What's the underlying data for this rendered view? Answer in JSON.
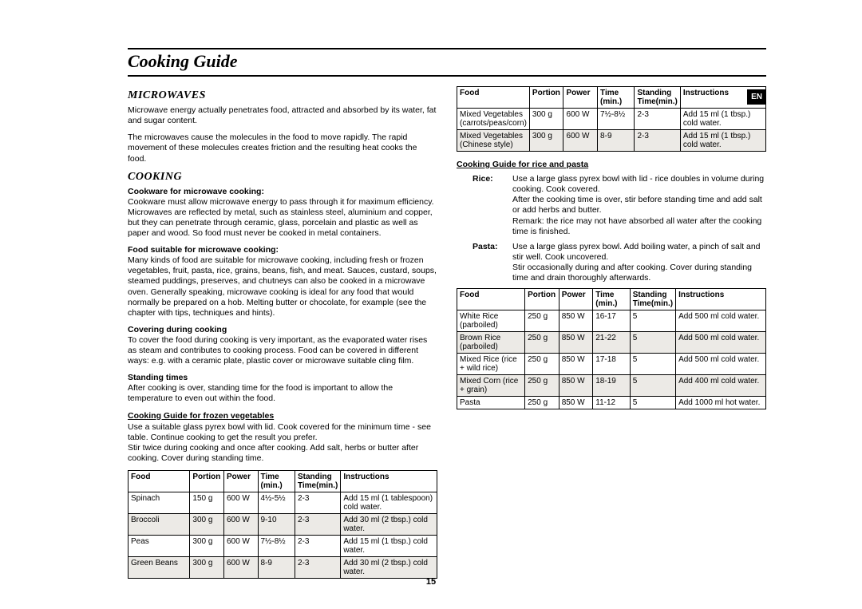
{
  "lang_tag": "EN",
  "page_number": "15",
  "title": "Cooking Guide",
  "microwaves": {
    "heading": "MICROWAVES",
    "p1": "Microwave energy actually penetrates food, attracted and absorbed by its water, fat and sugar content.",
    "p2": "The microwaves cause the molecules in the food to move rapidly. The rapid movement of these molecules creates friction and the resulting heat cooks the food."
  },
  "cooking": {
    "heading": "COOKING",
    "sub1_h": "Cookware for microwave cooking:",
    "sub1_p": "Cookware must allow microwave energy to pass through it for maximum efficiency. Microwaves are reflected by metal, such as stainless steel, aluminium and copper, but they can penetrate through ceramic, glass, porcelain and plastic as well as paper and wood. So food must never be cooked in metal containers.",
    "sub2_h": "Food suitable for microwave cooking:",
    "sub2_p": "Many kinds of food are suitable for microwave cooking, including fresh or frozen vegetables, fruit, pasta, rice, grains, beans, fish, and meat. Sauces, custard, soups, steamed puddings, preserves, and chutneys can also be cooked in a microwave oven. Generally speaking, microwave cooking is ideal for any food that would normally be prepared on a hob. Melting butter or chocolate, for example (see the chapter with tips, techniques and hints).",
    "sub3_h": "Covering during cooking",
    "sub3_p": "To cover the food during cooking is very important, as the evaporated water rises as steam and contributes to cooking process. Food can be covered in different ways: e.g. with a ceramic plate, plastic cover or microwave suitable cling film.",
    "sub4_h": "Standing times",
    "sub4_p": "After cooking is over, standing time for the food is important to allow the temperature to even out within the food.",
    "frozen_h": "Cooking Guide for frozen vegetables",
    "frozen_p": "Use a suitable glass pyrex bowl with lid. Cook covered for the minimum time - see table. Continue cooking to get the result you prefer.\nStir twice during cooking and once after cooking. Add salt, herbs or butter after cooking. Cover during standing time."
  },
  "headers": {
    "food": "Food",
    "portion": "Portion",
    "power": "Power",
    "time": "Time (min.)",
    "standing": "Standing Time(min.)",
    "instr": "Instructions"
  },
  "frozen_veg_table": {
    "rows": [
      {
        "food": "Spinach",
        "portion": "150 g",
        "power": "600 W",
        "time": "4½-5½",
        "stand": "2-3",
        "instr": "Add 15 ml (1 tablespoon) cold water."
      },
      {
        "food": "Broccoli",
        "portion": "300 g",
        "power": "600 W",
        "time": "9-10",
        "stand": "2-3",
        "instr": "Add 30 ml (2 tbsp.) cold water."
      },
      {
        "food": "Peas",
        "portion": "300 g",
        "power": "600 W",
        "time": "7½-8½",
        "stand": "2-3",
        "instr": "Add 15 ml (1 tbsp.) cold water."
      },
      {
        "food": "Green Beans",
        "portion": "300 g",
        "power": "600 W",
        "time": "8-9",
        "stand": "2-3",
        "instr": "Add 30 ml (2 tbsp.) cold water."
      }
    ]
  },
  "mixed_veg_table": {
    "rows": [
      {
        "food": "Mixed Vegetables (carrots/peas/corn)",
        "portion": "300 g",
        "power": "600 W",
        "time": "7½-8½",
        "stand": "2-3",
        "instr": "Add 15 ml (1 tbsp.) cold water."
      },
      {
        "food": "Mixed Vegetables (Chinese style)",
        "portion": "300 g",
        "power": "600 W",
        "time": "8-9",
        "stand": "2-3",
        "instr": "Add 15 ml (1 tbsp.) cold water."
      }
    ]
  },
  "rice_pasta": {
    "heading": "Cooking Guide for rice and pasta",
    "rice_term": "Rice:",
    "rice_desc": "Use a large glass pyrex bowl with lid - rice doubles in volume during cooking. Cook covered.\nAfter the cooking time is over, stir before standing time and add salt or add herbs and butter.\nRemark: the rice may not have absorbed all water after the cooking time is finished.",
    "pasta_term": "Pasta:",
    "pasta_desc": "Use a large glass pyrex bowl. Add boiling water, a pinch of salt and stir well. Cook uncovered.\nStir occasionally during and after cooking. Cover during standing time and drain thoroughly afterwards."
  },
  "rice_table": {
    "rows": [
      {
        "food": "White Rice (parboiled)",
        "portion": "250 g",
        "power": "850 W",
        "time": "16-17",
        "stand": "5",
        "instr": "Add 500 ml cold water."
      },
      {
        "food": "Brown Rice (parboiled)",
        "portion": "250 g",
        "power": "850 W",
        "time": "21-22",
        "stand": "5",
        "instr": "Add 500 ml cold water."
      },
      {
        "food": "Mixed Rice (rice + wild rice)",
        "portion": "250 g",
        "power": "850 W",
        "time": "17-18",
        "stand": "5",
        "instr": "Add 500 ml cold water."
      },
      {
        "food": "Mixed Corn (rice + grain)",
        "portion": "250 g",
        "power": "850 W",
        "time": "18-19",
        "stand": "5",
        "instr": "Add 400 ml cold water."
      },
      {
        "food": "Pasta",
        "portion": "250 g",
        "power": "850 W",
        "time": "11-12",
        "stand": "5",
        "instr": "Add 1000 ml hot water."
      }
    ]
  }
}
